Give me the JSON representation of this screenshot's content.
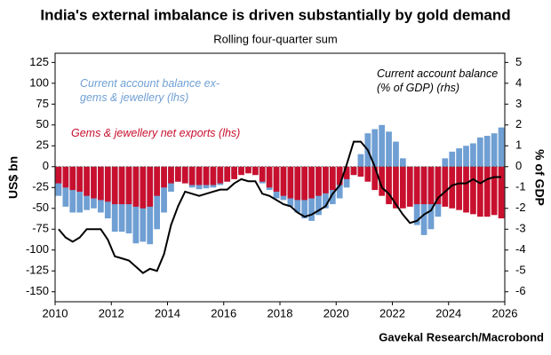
{
  "chart_data": {
    "type": "bar-line",
    "title": "India's external imbalance is driven substantially by gold demand",
    "subtitle": "Rolling four-quarter sum",
    "y_label": "US$ bn",
    "y2_label": "% of GDP",
    "source": "Gavekal Research/Macrobond",
    "xlim": [
      2010,
      2026
    ],
    "xticks": [
      2010,
      2012,
      2014,
      2016,
      2018,
      2020,
      2022,
      2024,
      2026
    ],
    "ylim": [
      -162,
      136
    ],
    "yticks": [
      -150,
      -125,
      -100,
      -75,
      -50,
      -25,
      0,
      25,
      50,
      75,
      100,
      125
    ],
    "y2lim": [
      -6.48,
      5.44
    ],
    "y2ticks": [
      -6,
      -5,
      -4,
      -3,
      -2,
      -1,
      0,
      1,
      2,
      3,
      4,
      5
    ],
    "grid": false,
    "x": [
      2010.125,
      2010.375,
      2010.625,
      2010.875,
      2011.125,
      2011.375,
      2011.625,
      2011.875,
      2012.125,
      2012.375,
      2012.625,
      2012.875,
      2013.125,
      2013.375,
      2013.625,
      2013.875,
      2014.125,
      2014.375,
      2014.625,
      2014.875,
      2015.125,
      2015.375,
      2015.625,
      2015.875,
      2016.125,
      2016.375,
      2016.625,
      2016.875,
      2017.125,
      2017.375,
      2017.625,
      2017.875,
      2018.125,
      2018.375,
      2018.625,
      2018.875,
      2019.125,
      2019.375,
      2019.625,
      2019.875,
      2020.125,
      2020.375,
      2020.625,
      2020.875,
      2021.125,
      2021.375,
      2021.625,
      2021.875,
      2022.125,
      2022.375,
      2022.625,
      2022.875,
      2023.125,
      2023.375,
      2023.625,
      2023.875,
      2024.125,
      2024.375,
      2024.625,
      2024.875,
      2025.125,
      2025.375,
      2025.625,
      2025.875
    ],
    "series": [
      {
        "name": "Current account balance ex-gems & jewellery (lhs)",
        "type": "bar",
        "color": "#6f9fd3",
        "values": [
          -35,
          -48,
          -55,
          -55,
          -52,
          -50,
          -55,
          -62,
          -78,
          -78,
          -80,
          -92,
          -90,
          -93,
          -75,
          -55,
          -30,
          -18,
          -20,
          -25,
          -27,
          -26,
          -25,
          -22,
          -18,
          -12,
          -8,
          -5,
          -10,
          -20,
          -28,
          -38,
          -40,
          -48,
          -55,
          -62,
          -65,
          -58,
          -50,
          -45,
          -38,
          -25,
          -10,
          15,
          40,
          45,
          50,
          42,
          30,
          10,
          -30,
          -70,
          -82,
          -75,
          -60,
          10,
          18,
          22,
          25,
          28,
          35,
          37,
          40,
          47
        ]
      },
      {
        "name": "Gems & jewellery net exports (lhs)",
        "type": "bar",
        "color": "#c8102e",
        "values": [
          -20,
          -25,
          -28,
          -30,
          -35,
          -38,
          -40,
          -42,
          -45,
          -45,
          -45,
          -48,
          -50,
          -48,
          -35,
          -25,
          -20,
          -18,
          -20,
          -22,
          -22,
          -22,
          -22,
          -20,
          -18,
          -15,
          -10,
          -8,
          -10,
          -18,
          -25,
          -30,
          -35,
          -38,
          -40,
          -40,
          -38,
          -35,
          -32,
          -28,
          -22,
          -15,
          -10,
          -12,
          -18,
          -28,
          -35,
          -45,
          -50,
          -50,
          -48,
          -45,
          -45,
          -45,
          -45,
          -48,
          -50,
          -52,
          -55,
          -57,
          -60,
          -60,
          -58,
          -62
        ]
      },
      {
        "name": "Current account balance (% of GDP) (rhs)",
        "type": "line",
        "axis": "y2",
        "color": "#000000",
        "values": [
          -3.0,
          -3.4,
          -3.6,
          -3.4,
          -3.0,
          -3.0,
          -3.0,
          -3.5,
          -4.3,
          -4.4,
          -4.5,
          -4.8,
          -5.1,
          -4.9,
          -5.0,
          -4.2,
          -2.8,
          -1.9,
          -1.2,
          -1.3,
          -1.4,
          -1.3,
          -1.2,
          -1.1,
          -1.1,
          -0.8,
          -0.6,
          -0.7,
          -0.7,
          -1.3,
          -1.4,
          -1.6,
          -1.8,
          -1.9,
          -2.2,
          -2.4,
          -2.3,
          -2.1,
          -1.9,
          -1.3,
          -0.9,
          0.1,
          1.2,
          1.2,
          0.8,
          0.0,
          -1.0,
          -1.3,
          -1.8,
          -2.3,
          -2.7,
          -2.6,
          -2.3,
          -2.1,
          -1.5,
          -1.2,
          -0.9,
          -0.8,
          -0.8,
          -0.6,
          -0.8,
          -0.6,
          -0.5,
          -0.5
        ]
      }
    ]
  }
}
